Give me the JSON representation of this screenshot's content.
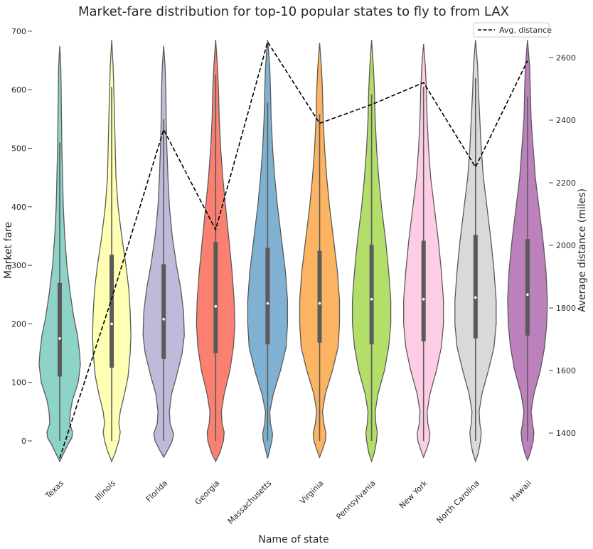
{
  "chart_data": {
    "type": "violin",
    "title": "Market-fare distribution for top-10 popular states to fly to from LAX",
    "xlabel": "Name of state",
    "ylabel": "Market fare",
    "y2label": "Average distance (miles)",
    "ylim": [
      -60,
      700
    ],
    "y2lim": [
      1310,
      2660
    ],
    "yticks": [
      0,
      100,
      200,
      300,
      400,
      500,
      600,
      700
    ],
    "y2ticks": [
      1400,
      1600,
      1800,
      2000,
      2200,
      2400,
      2600
    ],
    "grid": false,
    "legend_position": "top-right",
    "categories": [
      "Texas",
      "Illinois",
      "Florida",
      "Georgia",
      "Massachusetts",
      "Virginia",
      "Pennsylvania",
      "New York",
      "North Carolina",
      "Hawaii"
    ],
    "colors": [
      "#8dd3c7",
      "#ffffb3",
      "#bebada",
      "#fb8072",
      "#80b1d3",
      "#fdb462",
      "#b3de69",
      "#fccde5",
      "#d9d9d9",
      "#bc80bd"
    ],
    "violins": [
      {
        "min": -35,
        "max": 675,
        "q1": 110,
        "median": 175,
        "q3": 270,
        "whisker_low": 0,
        "whisker_high": 510,
        "profile": [
          [
            -35,
            0
          ],
          [
            -20,
            6
          ],
          [
            -5,
            12
          ],
          [
            5,
            17
          ],
          [
            15,
            18
          ],
          [
            30,
            14
          ],
          [
            50,
            15
          ],
          [
            70,
            18
          ],
          [
            100,
            26
          ],
          [
            130,
            29
          ],
          [
            150,
            28
          ],
          [
            180,
            25
          ],
          [
            210,
            20
          ],
          [
            250,
            15
          ],
          [
            300,
            10
          ],
          [
            350,
            7
          ],
          [
            400,
            5
          ],
          [
            450,
            4
          ],
          [
            500,
            3
          ],
          [
            550,
            2.5
          ],
          [
            600,
            2
          ],
          [
            640,
            1.5
          ],
          [
            675,
            0
          ]
        ]
      },
      {
        "min": -35,
        "max": 685,
        "q1": 125,
        "median": 200,
        "q3": 318,
        "whisker_low": 0,
        "whisker_high": 605,
        "profile": [
          [
            -35,
            0
          ],
          [
            -20,
            5
          ],
          [
            0,
            10
          ],
          [
            15,
            12
          ],
          [
            30,
            10
          ],
          [
            50,
            12
          ],
          [
            80,
            18
          ],
          [
            110,
            23
          ],
          [
            150,
            26
          ],
          [
            180,
            27
          ],
          [
            220,
            26
          ],
          [
            260,
            24
          ],
          [
            300,
            20
          ],
          [
            350,
            14
          ],
          [
            400,
            9
          ],
          [
            450,
            6
          ],
          [
            500,
            5
          ],
          [
            550,
            4
          ],
          [
            600,
            3
          ],
          [
            640,
            2
          ],
          [
            685,
            0
          ]
        ]
      },
      {
        "min": -28,
        "max": 675,
        "q1": 140,
        "median": 208,
        "q3": 302,
        "whisker_low": 0,
        "whisker_high": 550,
        "profile": [
          [
            -28,
            0
          ],
          [
            -15,
            6
          ],
          [
            0,
            12
          ],
          [
            12,
            14
          ],
          [
            30,
            9
          ],
          [
            50,
            8
          ],
          [
            80,
            11
          ],
          [
            110,
            18
          ],
          [
            150,
            26
          ],
          [
            180,
            29
          ],
          [
            220,
            28
          ],
          [
            260,
            24
          ],
          [
            300,
            18
          ],
          [
            350,
            12
          ],
          [
            400,
            8
          ],
          [
            450,
            6
          ],
          [
            500,
            4.5
          ],
          [
            550,
            3.5
          ],
          [
            600,
            3
          ],
          [
            640,
            2
          ],
          [
            675,
            0
          ]
        ]
      },
      {
        "min": -35,
        "max": 685,
        "q1": 150,
        "median": 230,
        "q3": 340,
        "whisker_low": 0,
        "whisker_high": 625,
        "profile": [
          [
            -35,
            0
          ],
          [
            -20,
            6
          ],
          [
            0,
            11
          ],
          [
            15,
            12
          ],
          [
            30,
            9
          ],
          [
            50,
            8
          ],
          [
            80,
            12
          ],
          [
            120,
            20
          ],
          [
            160,
            25
          ],
          [
            200,
            27
          ],
          [
            240,
            26
          ],
          [
            290,
            23
          ],
          [
            340,
            19
          ],
          [
            400,
            14
          ],
          [
            450,
            10
          ],
          [
            500,
            7
          ],
          [
            550,
            5
          ],
          [
            600,
            4
          ],
          [
            640,
            2.5
          ],
          [
            685,
            0
          ]
        ]
      },
      {
        "min": -30,
        "max": 685,
        "q1": 165,
        "median": 235,
        "q3": 330,
        "whisker_low": 0,
        "whisker_high": 578,
        "profile": [
          [
            -30,
            0
          ],
          [
            -15,
            3
          ],
          [
            0,
            6
          ],
          [
            12,
            7
          ],
          [
            30,
            4
          ],
          [
            50,
            3
          ],
          [
            80,
            8
          ],
          [
            120,
            18
          ],
          [
            160,
            26
          ],
          [
            200,
            28
          ],
          [
            240,
            28
          ],
          [
            290,
            25
          ],
          [
            340,
            20
          ],
          [
            400,
            14
          ],
          [
            450,
            10
          ],
          [
            500,
            7
          ],
          [
            550,
            5
          ],
          [
            600,
            4
          ],
          [
            640,
            3
          ],
          [
            685,
            0
          ]
        ]
      },
      {
        "min": -28,
        "max": 680,
        "q1": 168,
        "median": 235,
        "q3": 325,
        "whisker_low": 0,
        "whisker_high": 558,
        "profile": [
          [
            -28,
            0
          ],
          [
            -15,
            4
          ],
          [
            0,
            8
          ],
          [
            12,
            9
          ],
          [
            30,
            6
          ],
          [
            50,
            4
          ],
          [
            80,
            8
          ],
          [
            120,
            18
          ],
          [
            160,
            26
          ],
          [
            200,
            28
          ],
          [
            240,
            28
          ],
          [
            290,
            25
          ],
          [
            340,
            20
          ],
          [
            400,
            14
          ],
          [
            450,
            10
          ],
          [
            500,
            7
          ],
          [
            550,
            5
          ],
          [
            600,
            4
          ],
          [
            640,
            2.5
          ],
          [
            680,
            0
          ]
        ]
      },
      {
        "min": -35,
        "max": 685,
        "q1": 165,
        "median": 242,
        "q3": 335,
        "whisker_low": 0,
        "whisker_high": 592,
        "profile": [
          [
            -35,
            0
          ],
          [
            -20,
            4
          ],
          [
            0,
            7
          ],
          [
            15,
            8
          ],
          [
            30,
            6
          ],
          [
            50,
            5
          ],
          [
            80,
            9
          ],
          [
            120,
            18
          ],
          [
            160,
            24
          ],
          [
            200,
            27
          ],
          [
            240,
            27
          ],
          [
            290,
            24
          ],
          [
            340,
            20
          ],
          [
            400,
            14
          ],
          [
            450,
            10
          ],
          [
            500,
            7
          ],
          [
            550,
            5
          ],
          [
            600,
            4
          ],
          [
            640,
            2.5
          ],
          [
            685,
            0
          ]
        ]
      },
      {
        "min": -28,
        "max": 678,
        "q1": 170,
        "median": 242,
        "q3": 342,
        "whisker_low": 0,
        "whisker_high": 605,
        "profile": [
          [
            -28,
            0
          ],
          [
            -15,
            4
          ],
          [
            0,
            8
          ],
          [
            12,
            9
          ],
          [
            30,
            6
          ],
          [
            50,
            5
          ],
          [
            80,
            9
          ],
          [
            120,
            18
          ],
          [
            160,
            25
          ],
          [
            200,
            28
          ],
          [
            240,
            28
          ],
          [
            290,
            25
          ],
          [
            340,
            21
          ],
          [
            400,
            15
          ],
          [
            450,
            10
          ],
          [
            500,
            7
          ],
          [
            550,
            5
          ],
          [
            600,
            4
          ],
          [
            640,
            2.5
          ],
          [
            678,
            0
          ]
        ]
      },
      {
        "min": -35,
        "max": 685,
        "q1": 175,
        "median": 245,
        "q3": 352,
        "whisker_low": 0,
        "whisker_high": 620,
        "profile": [
          [
            -35,
            0
          ],
          [
            -20,
            4
          ],
          [
            0,
            7
          ],
          [
            15,
            8
          ],
          [
            30,
            6
          ],
          [
            50,
            5
          ],
          [
            80,
            9
          ],
          [
            120,
            18
          ],
          [
            160,
            26
          ],
          [
            200,
            29
          ],
          [
            240,
            29
          ],
          [
            290,
            26
          ],
          [
            340,
            22
          ],
          [
            400,
            16
          ],
          [
            450,
            11
          ],
          [
            500,
            8
          ],
          [
            550,
            6
          ],
          [
            600,
            4
          ],
          [
            640,
            3
          ],
          [
            685,
            0
          ]
        ]
      },
      {
        "min": -33,
        "max": 685,
        "q1": 180,
        "median": 250,
        "q3": 345,
        "whisker_low": 0,
        "whisker_high": 588,
        "profile": [
          [
            -33,
            0
          ],
          [
            -20,
            4
          ],
          [
            0,
            8
          ],
          [
            15,
            9
          ],
          [
            30,
            7
          ],
          [
            50,
            5
          ],
          [
            80,
            9
          ],
          [
            120,
            18
          ],
          [
            160,
            24
          ],
          [
            200,
            27
          ],
          [
            240,
            28
          ],
          [
            290,
            26
          ],
          [
            340,
            22
          ],
          [
            400,
            16
          ],
          [
            450,
            11
          ],
          [
            500,
            8
          ],
          [
            550,
            5
          ],
          [
            600,
            4
          ],
          [
            640,
            3
          ],
          [
            685,
            0
          ]
        ]
      }
    ],
    "distance_series": {
      "name": "Avg. distance",
      "values": [
        1320,
        1830,
        2370,
        2050,
        2650,
        2390,
        2450,
        2520,
        2250,
        2590
      ]
    }
  }
}
